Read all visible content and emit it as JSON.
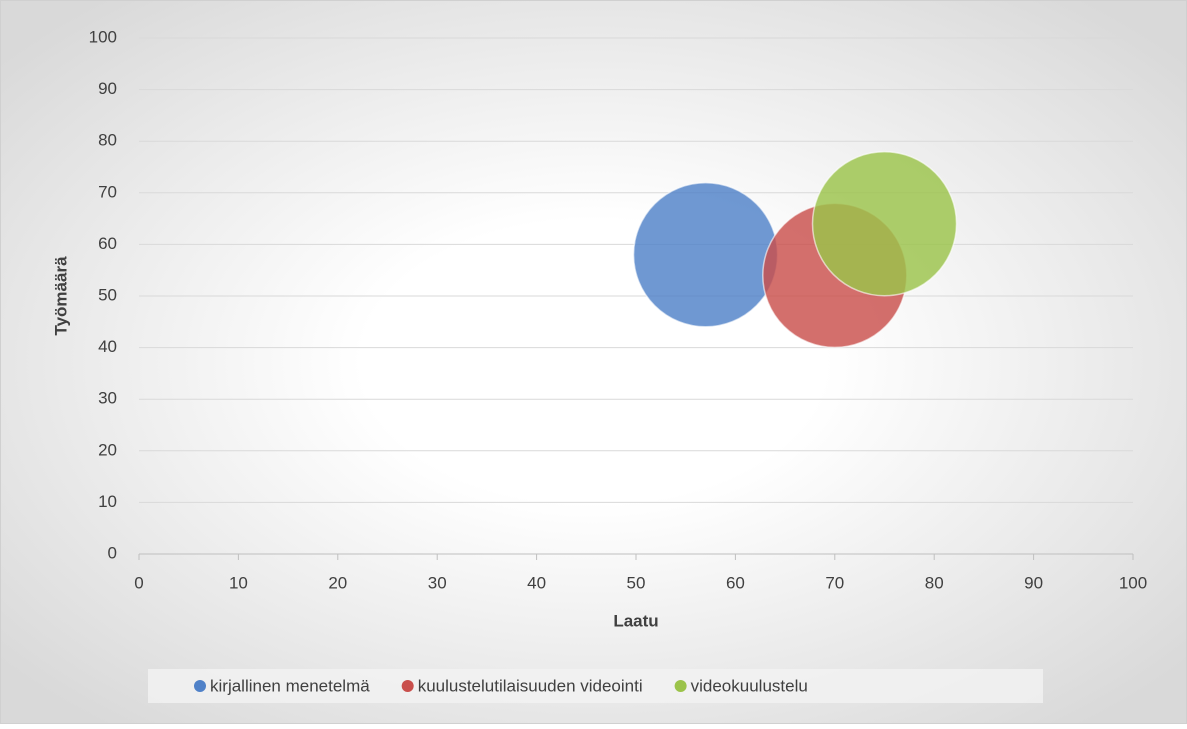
{
  "chart_data": {
    "type": "bubble",
    "x_label": "Laatu",
    "y_label": "Työmäärä",
    "series": [
      {
        "name": "kirjallinen menetelmä",
        "color": "#4f81c8",
        "x": [
          57
        ],
        "values": [
          58
        ]
      },
      {
        "name": "kuulustelutilaisuuden videointi",
        "color": "#c94f4c",
        "x": [
          70
        ],
        "values": [
          54
        ]
      },
      {
        "name": "videokuulustelu",
        "color": "#9bc34a",
        "x": [
          75
        ],
        "values": [
          64
        ]
      }
    ],
    "xlim": [
      0,
      100
    ],
    "xticks": [
      0,
      10,
      20,
      30,
      40,
      50,
      60,
      70,
      80,
      90,
      100
    ],
    "ylim": [
      0,
      100
    ],
    "yticks": [
      0,
      10,
      20,
      30,
      40,
      50,
      60,
      70,
      80,
      90,
      100
    ],
    "grid": true,
    "legend": "bottom"
  }
}
